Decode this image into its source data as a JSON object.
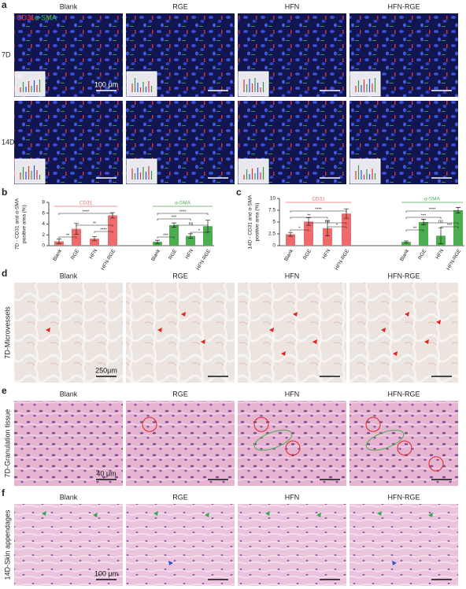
{
  "panels": {
    "a": {
      "label": "a",
      "columns": [
        "Blank",
        "RGE",
        "HFN",
        "HFN-RGE"
      ],
      "rows": [
        "7D",
        "14D"
      ],
      "stain_labels": [
        "CD31",
        "α-SMA"
      ],
      "inset_label": "3D",
      "scale_bar": "100 μm"
    },
    "b": {
      "label": "b"
    },
    "c": {
      "label": "c"
    },
    "d": {
      "label": "d",
      "columns": [
        "Blank",
        "RGE",
        "HFN",
        "HFN-RGE"
      ],
      "row_label": "7D-Microvessels",
      "scale_bar": "250μm"
    },
    "e": {
      "label": "e",
      "columns": [
        "Blank",
        "RGE",
        "HFN",
        "HFN-RGE"
      ],
      "row_label": "7D-Granulation tissue",
      "scale_bar": "40 μm"
    },
    "f": {
      "label": "f",
      "columns": [
        "Blank",
        "RGE",
        "HFN",
        "HFN-RGE"
      ],
      "row_label": "14D-Skin appendages",
      "scale_bar": "100 μm"
    }
  },
  "chart_data": [
    {
      "type": "bar",
      "ylabel": [
        "7D - CD31 and α-SMA",
        "positive area (%)"
      ],
      "categories": [
        "Blank",
        "RGE",
        "HFN",
        "HFN-RGE"
      ],
      "series": [
        {
          "name": "CD31",
          "color": "#ef6b6b",
          "values": [
            0.8,
            3.1,
            1.3,
            5.6
          ],
          "errors": [
            0.4,
            1.0,
            0.4,
            0.5
          ],
          "significance": [
            "****",
            "**",
            "**",
            "****"
          ]
        },
        {
          "name": "α-SMA",
          "color": "#4dae4f",
          "values": [
            0.7,
            3.8,
            1.8,
            3.6
          ],
          "errors": [
            0.3,
            0.4,
            0.4,
            1.1
          ],
          "significance": [
            "****",
            "***",
            "ns",
            "***",
            "*"
          ]
        }
      ],
      "ylim": [
        0,
        8
      ],
      "yticks": [
        0,
        2,
        4,
        6,
        8
      ]
    },
    {
      "type": "bar",
      "ylabel": [
        "14D - CD31 and α-SMA",
        "positive area (%)"
      ],
      "categories": [
        "Blank",
        "RGE",
        "HFN",
        "HFN-RGE"
      ],
      "series": [
        {
          "name": "CD31",
          "color": "#ef6b6b",
          "values": [
            2.4,
            5.1,
            3.7,
            6.8
          ],
          "errors": [
            0.4,
            0.8,
            1.6,
            1.0
          ],
          "significance": [
            "****",
            "**",
            "*",
            "ns",
            "*"
          ]
        },
        {
          "name": "α-SMA",
          "color": "#4dae4f",
          "values": [
            0.8,
            5.0,
            2.1,
            7.5
          ],
          "errors": [
            0.2,
            0.6,
            1.7,
            0.6
          ],
          "significance": [
            "****",
            "***",
            "ns",
            "**",
            "***"
          ]
        }
      ],
      "ylim": [
        0,
        10
      ],
      "yticks": [
        0,
        2.5,
        5,
        7.5,
        10
      ]
    }
  ]
}
